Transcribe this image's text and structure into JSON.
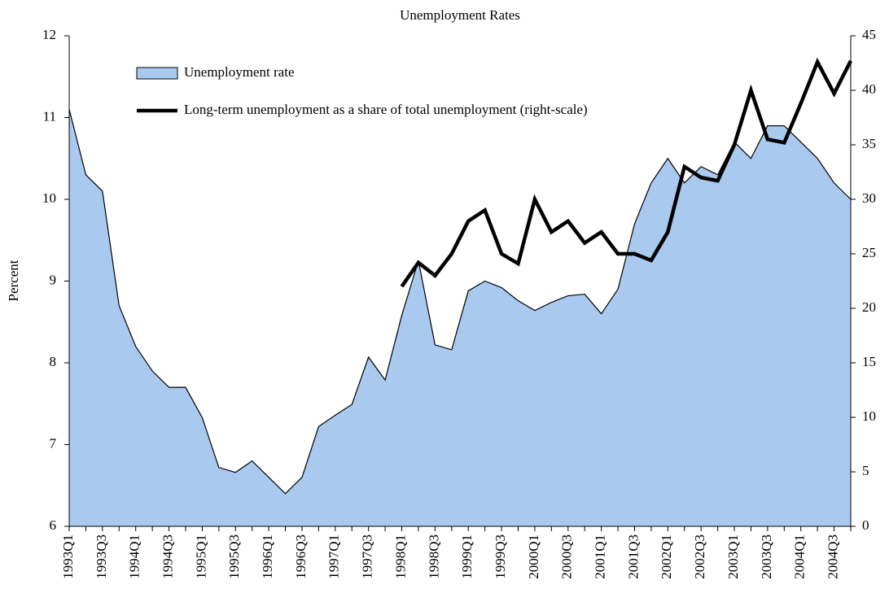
{
  "chart_data": {
    "type": "area",
    "title": "Unemployment Rates",
    "ylabel": "Percent",
    "categories": [
      "1993Q1",
      null,
      "1993Q3",
      null,
      "1994Q1",
      null,
      "1994Q3",
      null,
      "1995Q1",
      null,
      "1995Q3",
      null,
      "1996Q1",
      null,
      "1996Q3",
      null,
      "1997Q1",
      null,
      "1997Q3",
      null,
      "1998Q1",
      null,
      "1998Q3",
      null,
      "1999Q1",
      null,
      "1999Q3",
      null,
      "2000Q1",
      null,
      "2000Q3",
      null,
      "2001Q1",
      null,
      "2001Q3",
      null,
      "2002Q1",
      null,
      "2002Q3",
      null,
      "2003Q1",
      null,
      "2003Q3",
      null,
      "2004Q1",
      null,
      "2004Q3",
      null
    ],
    "series": [
      {
        "name": "Unemployment rate",
        "type": "area",
        "color": "#a9c9ef",
        "values": [
          11.1,
          10.3,
          10.1,
          8.7,
          8.2,
          7.9,
          7.7,
          7.7,
          7.33,
          6.72,
          6.66,
          6.8,
          6.6,
          6.4,
          6.6,
          7.22,
          7.36,
          7.49,
          8.07,
          7.79,
          8.58,
          9.25,
          8.22,
          8.16,
          8.88,
          9.0,
          8.92,
          8.76,
          8.64,
          8.74,
          8.82,
          8.84,
          8.6,
          8.9,
          9.7,
          10.2,
          10.5,
          10.2,
          10.4,
          10.3,
          10.7,
          10.5,
          10.9,
          10.9,
          10.7,
          10.5,
          10.2,
          10.0
        ]
      },
      {
        "name": "Long-term unemployment as a share of total unemployment (right-scale)",
        "type": "line",
        "color": "#000000",
        "axis": "y2",
        "values": [
          null,
          null,
          null,
          null,
          null,
          null,
          null,
          null,
          null,
          null,
          null,
          null,
          null,
          null,
          null,
          null,
          null,
          null,
          null,
          null,
          22,
          24.2,
          23,
          25,
          28,
          29,
          25,
          24.1,
          30,
          27,
          28,
          26,
          27,
          25,
          25,
          24.4,
          27,
          33,
          32,
          31.7,
          35,
          40,
          35.5,
          35.2,
          38.8,
          42.6,
          39.7,
          42.7
        ]
      }
    ],
    "ylim": [
      6,
      12
    ],
    "yticks": [
      6,
      7,
      8,
      9,
      10,
      11,
      12
    ],
    "y2lim": [
      0,
      45
    ],
    "y2ticks": [
      0,
      5,
      10,
      15,
      20,
      25,
      30,
      35,
      40,
      45
    ],
    "grid": false,
    "legend": "upper left"
  }
}
